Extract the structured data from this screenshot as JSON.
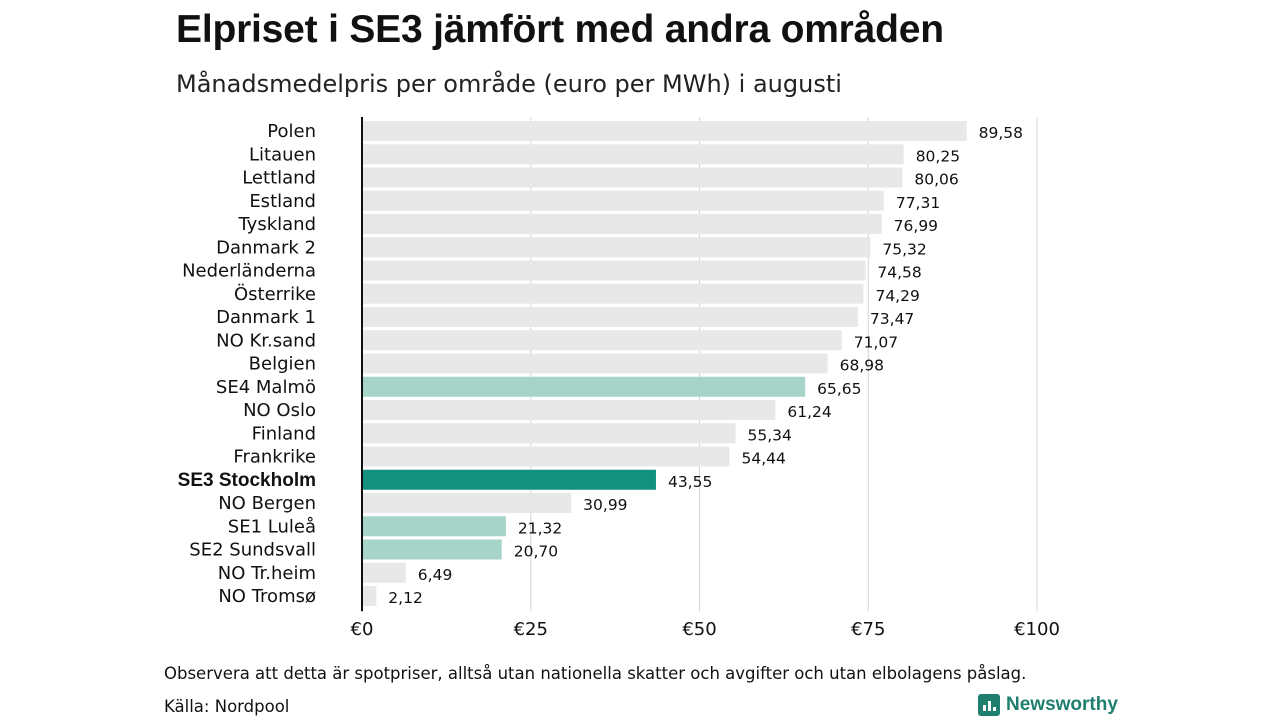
{
  "title": "Elpriset i SE3 jämfört med andra områden",
  "subtitle": "Månadsmedelpris per område (euro per MWh) i augusti",
  "footer": {
    "note": "Observera att detta är spotpriser, alltså utan nationella skatter och avgifter och utan elbolagens påslag.",
    "source": "Källa: Nordpool",
    "brand": "Newsworthy"
  },
  "colors": {
    "default_bar": "#e8e8e8",
    "highlight_bar": "#12917f",
    "swedish_bar": "#a6d4c8",
    "grid": "#d4d4d4",
    "axis": "#111111",
    "brand": "#1f7f6e"
  },
  "chart_data": {
    "type": "bar",
    "orientation": "horizontal",
    "categories": [
      "Polen",
      "Litauen",
      "Lettland",
      "Estland",
      "Tyskland",
      "Danmark 2",
      "Nederländerna",
      "Österrike",
      "Danmark 1",
      "NO Kr.sand",
      "Belgien",
      "SE4 Malmö",
      "NO Oslo",
      "Finland",
      "Frankrike",
      "SE3 Stockholm",
      "NO Bergen",
      "SE1 Luleå",
      "SE2 Sundsvall",
      "NO Tr.heim",
      "NO Tromsø"
    ],
    "values": [
      89.58,
      80.25,
      80.06,
      77.31,
      76.99,
      75.32,
      74.58,
      74.29,
      73.47,
      71.07,
      68.98,
      65.65,
      61.24,
      55.34,
      54.44,
      43.55,
      30.99,
      21.32,
      20.7,
      6.49,
      2.12
    ],
    "value_labels": [
      "89,58",
      "80,25",
      "80,06",
      "77,31",
      "76,99",
      "75,32",
      "74,58",
      "74,29",
      "73,47",
      "71,07",
      "68,98",
      "65,65",
      "61,24",
      "55,34",
      "54,44",
      "43,55",
      "30,99",
      "21,32",
      "20,70",
      "6,49",
      "2,12"
    ],
    "highlight": [
      "default",
      "default",
      "default",
      "default",
      "default",
      "default",
      "default",
      "default",
      "default",
      "default",
      "default",
      "swedish",
      "default",
      "default",
      "default",
      "primary",
      "default",
      "swedish",
      "swedish",
      "default",
      "default"
    ],
    "xlim": [
      0,
      100
    ],
    "xticks": [
      0,
      25,
      50,
      75,
      100
    ],
    "xtick_labels": [
      "€0",
      "€25",
      "€50",
      "€75",
      "€100"
    ],
    "grid": true,
    "legend": "none"
  }
}
